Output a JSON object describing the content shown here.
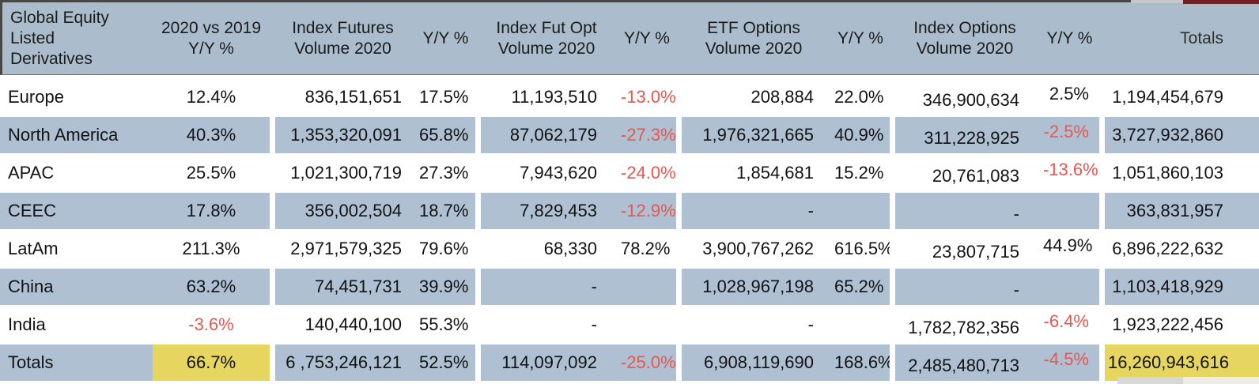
{
  "colors": {
    "header_bg": "#abbdcc",
    "row_shade": "#aec0d2",
    "highlight": "#e6d55f",
    "negative": "#e8564c",
    "border_dark": "#474747",
    "text": "#121212"
  },
  "chart_data": {
    "type": "table",
    "title": "Global Equity Listed Derivatives",
    "columns": [
      "Global Equity Listed Derivatives",
      "2020 vs 2019 Y/Y %",
      "Index Futures Volume 2020",
      "Y/Y %",
      "Index Fut Opt Volume 2020",
      "Y/Y %",
      "ETF Options Volume 2020",
      "Y/Y %",
      "Index Options Volume 2020",
      "Y/Y %",
      "Totals"
    ],
    "rows": [
      {
        "region": "Europe",
        "yy": "12.4%",
        "fut_vol": "836,151,651",
        "fut_yy": "17.5%",
        "futopt_vol": "11,193,510",
        "futopt_yy": "-13.0%",
        "etf_vol": "208,884",
        "etf_yy": "22.0%",
        "idxopt_vol": "346,900,634",
        "idxopt_yy": "2.5%",
        "total": "1,194,454,679",
        "shaded": false,
        "highlight": false
      },
      {
        "region": "North America",
        "yy": "40.3%",
        "fut_vol": "1,353,320,091",
        "fut_yy": "65.8%",
        "futopt_vol": "87,062,179",
        "futopt_yy": "-27.3%",
        "etf_vol": "1,976,321,665",
        "etf_yy": "40.9%",
        "idxopt_vol": "311,228,925",
        "idxopt_yy": "-2.5%",
        "total": "3,727,932,860",
        "shaded": true,
        "highlight": false
      },
      {
        "region": "APAC",
        "yy": "25.5%",
        "fut_vol": "1,021,300,719",
        "fut_yy": "27.3%",
        "futopt_vol": "7,943,620",
        "futopt_yy": "-24.0%",
        "etf_vol": "1,854,681",
        "etf_yy": "15.2%",
        "idxopt_vol": "20,761,083",
        "idxopt_yy": "-13.6%",
        "total": "1,051,860,103",
        "shaded": false,
        "highlight": false
      },
      {
        "region": "CEEC",
        "yy": "17.8%",
        "fut_vol": "356,002,504",
        "fut_yy": "18.7%",
        "futopt_vol": "7,829,453",
        "futopt_yy": "-12.9%",
        "etf_vol": "-",
        "etf_yy": "",
        "idxopt_vol": "-",
        "idxopt_yy": "",
        "total": "363,831,957",
        "shaded": true,
        "highlight": false
      },
      {
        "region": "LatAm",
        "yy": "211.3%",
        "fut_vol": "2,971,579,325",
        "fut_yy": "79.6%",
        "futopt_vol": "68,330",
        "futopt_yy": "78.2%",
        "etf_vol": "3,900,767,262",
        "etf_yy": "616.5%",
        "idxopt_vol": "23,807,715",
        "idxopt_yy": "44.9%",
        "total": "6,896,222,632",
        "shaded": false,
        "highlight": false
      },
      {
        "region": "China",
        "yy": "63.2%",
        "fut_vol": "74,451,731",
        "fut_yy": "39.9%",
        "futopt_vol": "-",
        "futopt_yy": "",
        "etf_vol": "1,028,967,198",
        "etf_yy": "65.2%",
        "idxopt_vol": "-",
        "idxopt_yy": "",
        "total": "1,103,418,929",
        "shaded": true,
        "highlight": false
      },
      {
        "region": "India",
        "yy": "-3.6%",
        "fut_vol": "140,440,100",
        "fut_yy": "55.3%",
        "futopt_vol": "-",
        "futopt_yy": "",
        "etf_vol": "-",
        "etf_yy": "",
        "idxopt_vol": "1,782,782,356",
        "idxopt_yy": "-6.4%",
        "total": "1,923,222,456",
        "shaded": false,
        "highlight": false
      },
      {
        "region": "Totals",
        "yy": "66.7%",
        "fut_vol": "6 ,753,246,121",
        "fut_yy": "52.5%",
        "futopt_vol": "114,097,092",
        "futopt_yy": "-25.0%",
        "etf_vol": "6,908,119,690",
        "etf_yy": "168.6%",
        "idxopt_vol": "2,485,480,713",
        "idxopt_yy": "-4.5%",
        "total": "16,260,943,616",
        "shaded": true,
        "highlight": true
      }
    ],
    "legend_position": "none",
    "grid": false
  }
}
